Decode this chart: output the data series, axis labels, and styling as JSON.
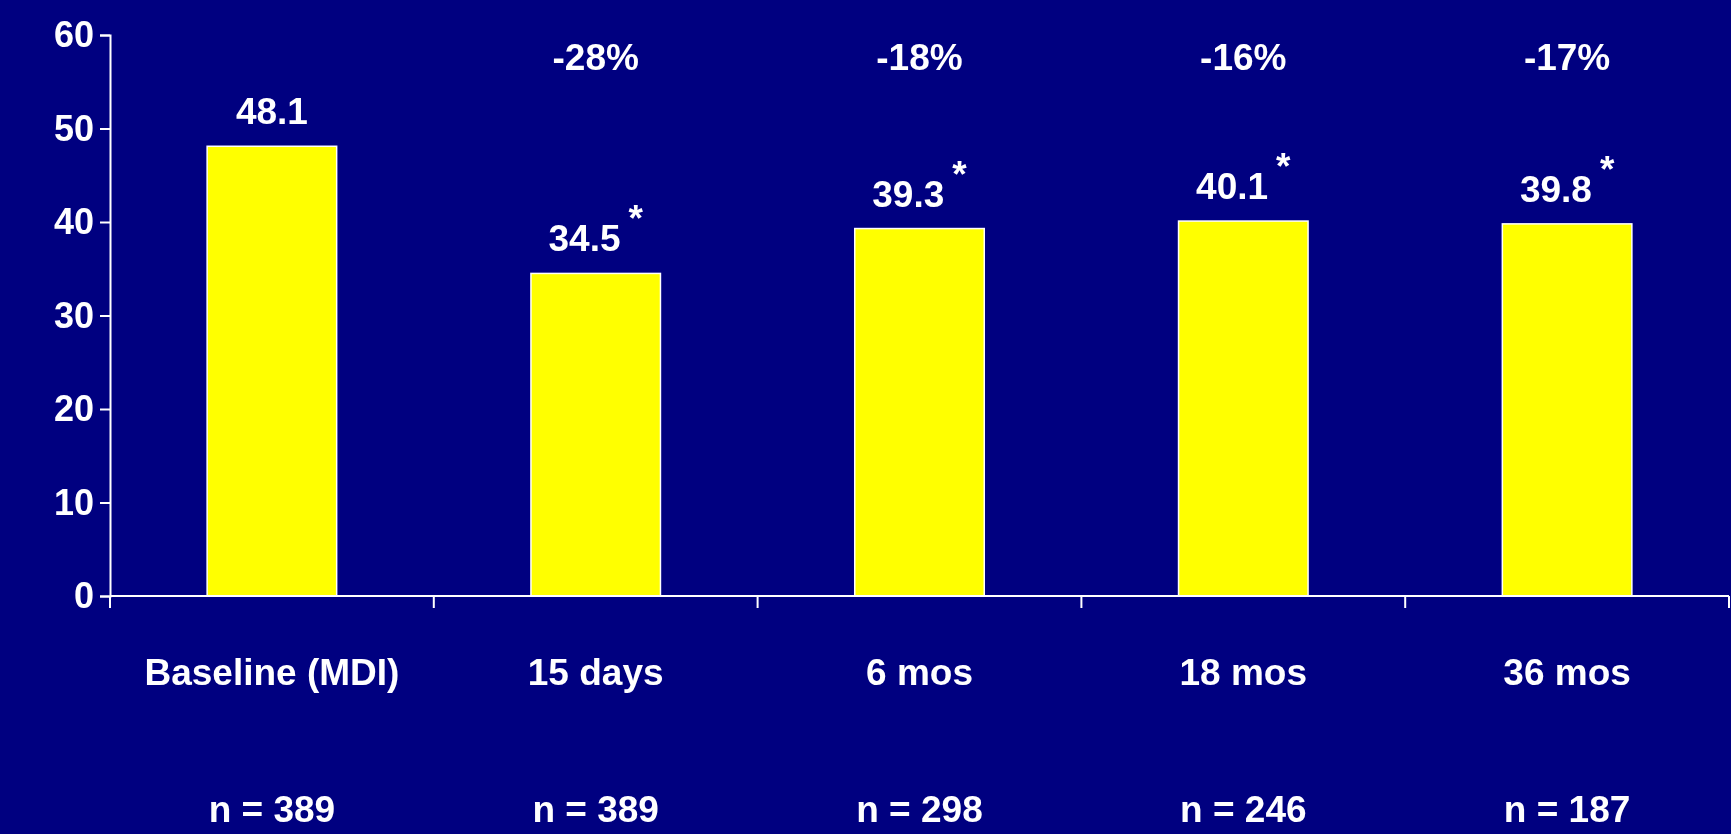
{
  "chart_data": {
    "type": "bar",
    "categories": [
      "Baseline (MDI)",
      "15 days",
      "6 mos",
      "18 mos",
      "36 mos"
    ],
    "values": [
      48.1,
      34.5,
      39.3,
      40.1,
      39.8
    ],
    "color": "#ffff00",
    "value_labels": [
      "48.1",
      "34.5$^{*}$",
      "39.3$^{*}$",
      "40.1$^{*}$",
      "39.8$^{*}$"
    ],
    "ylim": [
      0,
      60
    ],
    "yticks": [
      0,
      10,
      20,
      30,
      40,
      50,
      60
    ],
    "grid": false,
    "annotations": [
      "-28%",
      "-18%",
      "-16%",
      "-17%",
      "n = 389",
      "n = 389",
      "n = 298",
      "n = 246",
      "n = 187"
    ]
  }
}
